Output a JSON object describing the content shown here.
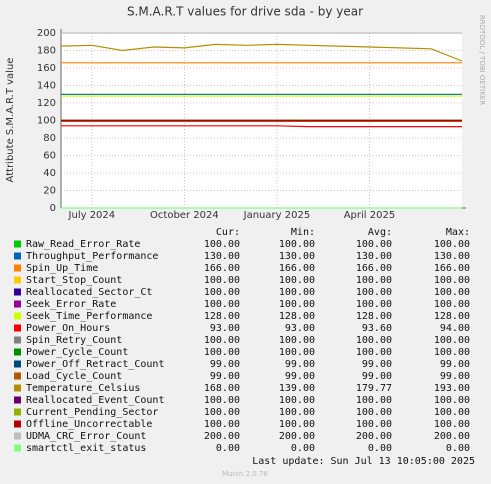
{
  "chart_data": {
    "type": "line",
    "title": "S.M.A.R.T values for drive sda - by year",
    "y_label": "Attribute S.M.A.R.T value",
    "side_note": "RRDTOOL / TOBI OETIKER",
    "x": [
      "2024-06",
      "2024-07",
      "2024-08",
      "2024-09",
      "2024-10",
      "2024-11",
      "2024-12",
      "2025-01",
      "2025-02",
      "2025-03",
      "2025-04",
      "2025-05",
      "2025-06",
      "2025-07"
    ],
    "xlim": [
      "2024-06",
      "2025-07"
    ],
    "xticks": [
      {
        "value": "2024-07",
        "label": "July 2024"
      },
      {
        "value": "2024-10",
        "label": "October 2024"
      },
      {
        "value": "2025-01",
        "label": "January 2025"
      },
      {
        "value": "2025-04",
        "label": "April 2025"
      }
    ],
    "ylim": [
      0,
      200
    ],
    "yticks": [
      0,
      20,
      40,
      60,
      80,
      100,
      120,
      140,
      160,
      180,
      200
    ],
    "grid": true,
    "columns": [
      "Cur:",
      "Min:",
      "Avg:",
      "Max:"
    ],
    "series": [
      {
        "name": "Raw_Read_Error_Rate",
        "color": "#00cc00",
        "values": [
          100,
          100,
          100,
          100,
          100,
          100,
          100,
          100,
          100,
          100,
          100,
          100,
          100,
          100
        ],
        "stats": [
          "100.00",
          "100.00",
          "100.00",
          "100.00"
        ]
      },
      {
        "name": "Throughput_Performance",
        "color": "#0066b3",
        "values": [
          130,
          130,
          130,
          130,
          130,
          130,
          130,
          130,
          130,
          130,
          130,
          130,
          130,
          130
        ],
        "stats": [
          "130.00",
          "130.00",
          "130.00",
          "130.00"
        ]
      },
      {
        "name": "Spin_Up_Time",
        "color": "#ff8000",
        "values": [
          166,
          166,
          166,
          166,
          166,
          166,
          166,
          166,
          166,
          166,
          166,
          166,
          166,
          166
        ],
        "stats": [
          "166.00",
          "166.00",
          "166.00",
          "166.00"
        ]
      },
      {
        "name": "Start_Stop_Count",
        "color": "#ffcc00",
        "values": [
          100,
          100,
          100,
          100,
          100,
          100,
          100,
          100,
          100,
          100,
          100,
          100,
          100,
          100
        ],
        "stats": [
          "100.00",
          "100.00",
          "100.00",
          "100.00"
        ]
      },
      {
        "name": "Reallocated_Sector_Ct",
        "color": "#330099",
        "values": [
          100,
          100,
          100,
          100,
          100,
          100,
          100,
          100,
          100,
          100,
          100,
          100,
          100,
          100
        ],
        "stats": [
          "100.00",
          "100.00",
          "100.00",
          "100.00"
        ]
      },
      {
        "name": "Seek_Error_Rate",
        "color": "#990099",
        "values": [
          100,
          100,
          100,
          100,
          100,
          100,
          100,
          100,
          100,
          100,
          100,
          100,
          100,
          100
        ],
        "stats": [
          "100.00",
          "100.00",
          "100.00",
          "100.00"
        ]
      },
      {
        "name": "Seek_Time_Performance",
        "color": "#ccff00",
        "values": [
          128,
          128,
          128,
          128,
          128,
          128,
          128,
          128,
          128,
          128,
          128,
          128,
          128,
          128
        ],
        "stats": [
          "128.00",
          "128.00",
          "128.00",
          "128.00"
        ]
      },
      {
        "name": "Power_On_Hours",
        "color": "#ff0000",
        "values": [
          94,
          94,
          94,
          94,
          94,
          94,
          94,
          94,
          93,
          93,
          93,
          93,
          93,
          93
        ],
        "stats": [
          "93.00",
          "93.00",
          "93.60",
          "94.00"
        ]
      },
      {
        "name": "Spin_Retry_Count",
        "color": "#808080",
        "values": [
          100,
          100,
          100,
          100,
          100,
          100,
          100,
          100,
          100,
          100,
          100,
          100,
          100,
          100
        ],
        "stats": [
          "100.00",
          "100.00",
          "100.00",
          "100.00"
        ]
      },
      {
        "name": "Power_Cycle_Count",
        "color": "#008f00",
        "values": [
          100,
          100,
          100,
          100,
          100,
          100,
          100,
          100,
          100,
          100,
          100,
          100,
          100,
          100
        ],
        "stats": [
          "100.00",
          "100.00",
          "100.00",
          "100.00"
        ]
      },
      {
        "name": "Power_Off_Retract_Count",
        "color": "#00487d",
        "values": [
          99,
          99,
          99,
          99,
          99,
          99,
          99,
          99,
          99,
          99,
          99,
          99,
          99,
          99
        ],
        "stats": [
          "99.00",
          "99.00",
          "99.00",
          "99.00"
        ]
      },
      {
        "name": "Load_Cycle_Count",
        "color": "#b35a00",
        "values": [
          99,
          99,
          99,
          99,
          99,
          99,
          99,
          99,
          99,
          99,
          99,
          99,
          99,
          99
        ],
        "stats": [
          "99.00",
          "99.00",
          "99.00",
          "99.00"
        ]
      },
      {
        "name": "Temperature_Celsius",
        "color": "#b38f00",
        "values": [
          185,
          186,
          180,
          184,
          183,
          187,
          186,
          187,
          186,
          185,
          184,
          183,
          182,
          168
        ],
        "stats": [
          "168.00",
          "139.00",
          "179.77",
          "193.00"
        ]
      },
      {
        "name": "Reallocated_Event_Count",
        "color": "#6b006b",
        "values": [
          100,
          100,
          100,
          100,
          100,
          100,
          100,
          100,
          100,
          100,
          100,
          100,
          100,
          100
        ],
        "stats": [
          "100.00",
          "100.00",
          "100.00",
          "100.00"
        ]
      },
      {
        "name": "Current_Pending_Sector",
        "color": "#8fb300",
        "values": [
          100,
          100,
          100,
          100,
          100,
          100,
          100,
          100,
          100,
          100,
          100,
          100,
          100,
          100
        ],
        "stats": [
          "100.00",
          "100.00",
          "100.00",
          "100.00"
        ]
      },
      {
        "name": "Offline_Uncorrectable",
        "color": "#b30000",
        "values": [
          100,
          100,
          100,
          100,
          100,
          100,
          100,
          100,
          100,
          100,
          100,
          100,
          100,
          100
        ],
        "stats": [
          "100.00",
          "100.00",
          "100.00",
          "100.00"
        ]
      },
      {
        "name": "UDMA_CRC_Error_Count",
        "color": "#bebebe",
        "values": [
          200,
          200,
          200,
          200,
          200,
          200,
          200,
          200,
          200,
          200,
          200,
          200,
          200,
          200
        ],
        "stats": [
          "200.00",
          "200.00",
          "200.00",
          "200.00"
        ]
      },
      {
        "name": "smartctl_exit_status",
        "color": "#80ff80",
        "values": [
          0,
          0,
          0,
          0,
          0,
          0,
          0,
          0,
          0,
          0,
          0,
          0,
          0,
          0
        ],
        "stats": [
          "0.00",
          "0.00",
          "0.00",
          "0.00"
        ]
      }
    ],
    "last_update": "Last update: Sun Jul 13 10:05:00 2025",
    "footer": "Munin 2.0.76"
  }
}
